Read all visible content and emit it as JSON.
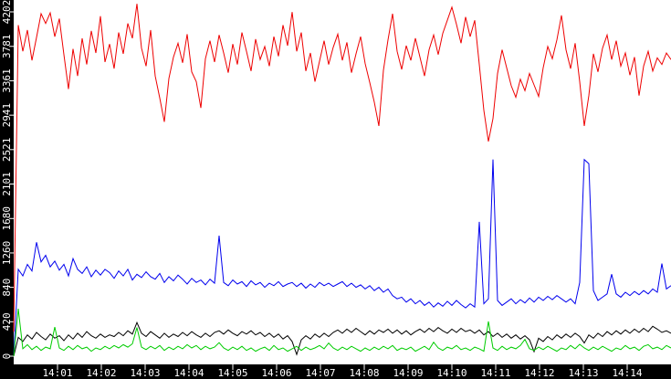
{
  "chart_data": {
    "type": "line",
    "title": "",
    "xlabel": "",
    "ylabel": "",
    "grid": false,
    "legend": "none",
    "background_color": "#ffffff",
    "axis_strip_color": "#000000",
    "axis_text_color": "#ffffff",
    "x_axis": {
      "start_time": "14:00",
      "end_time": "14:15",
      "tick_labels": [
        "14:01",
        "14:02",
        "14:03",
        "14:04",
        "14:05",
        "14:06",
        "14:07",
        "14:08",
        "14:09",
        "14:10",
        "14:11",
        "14:12",
        "14:13",
        "14:14"
      ],
      "tick_minutes": [
        1,
        2,
        3,
        4,
        5,
        6,
        7,
        8,
        9,
        10,
        11,
        12,
        13,
        14
      ],
      "total_minutes": 15
    },
    "y_axis": {
      "tick_labels": [
        "0",
        "420",
        "840",
        "1260",
        "1680",
        "2101",
        "2521",
        "2941",
        "3361",
        "3781",
        "4202"
      ],
      "tick_values": [
        0,
        420,
        840,
        1260,
        1680,
        2101,
        2521,
        2941,
        3361,
        3781,
        4202
      ],
      "min": 0,
      "max": 4202
    },
    "sample_step_minutes": 0.10417,
    "series": [
      {
        "name": "red-series",
        "color": "#ee0000",
        "values": [
          300,
          4040,
          3720,
          3980,
          3610,
          3890,
          4180,
          4060,
          4190,
          3900,
          4120,
          3680,
          3260,
          3750,
          3420,
          3880,
          3560,
          3970,
          3700,
          4150,
          3590,
          3810,
          3510,
          3950,
          3690,
          4060,
          3880,
          4300,
          3760,
          3540,
          3980,
          3420,
          3150,
          2860,
          3390,
          3650,
          3820,
          3580,
          3930,
          3470,
          3350,
          3030,
          3630,
          3850,
          3590,
          3920,
          3700,
          3460,
          3810,
          3560,
          3950,
          3720,
          3480,
          3870,
          3620,
          3780,
          3540,
          3900,
          3660,
          4040,
          3790,
          4200,
          3720,
          3950,
          3480,
          3700,
          3350,
          3600,
          3850,
          3560,
          3770,
          3930,
          3610,
          3830,
          3460,
          3690,
          3900,
          3570,
          3340,
          3100,
          2810,
          3490,
          3860,
          4180,
          3720,
          3500,
          3790,
          3610,
          3880,
          3650,
          3420,
          3740,
          3920,
          3680,
          3940,
          4100,
          4260,
          4050,
          3820,
          4140,
          3900,
          4100,
          3560,
          3000,
          2620,
          2900,
          3450,
          3740,
          3520,
          3300,
          3160,
          3380,
          3240,
          3450,
          3310,
          3170,
          3520,
          3780,
          3630,
          3860,
          4160,
          3740,
          3510,
          3820,
          3350,
          2810,
          3180,
          3690,
          3470,
          3760,
          3920,
          3620,
          3850,
          3540,
          3700,
          3430,
          3650,
          3180,
          3540,
          3720,
          3480,
          3640,
          3560,
          3700,
          3620
        ]
      },
      {
        "name": "blue-series",
        "color": "#0000ee",
        "values": [
          0,
          1060,
          980,
          1120,
          1040,
          1390,
          1150,
          1230,
          1090,
          1160,
          1050,
          1120,
          980,
          1190,
          1060,
          1010,
          1090,
          970,
          1050,
          990,
          1060,
          1020,
          950,
          1040,
          980,
          1060,
          930,
          1000,
          960,
          1030,
          970,
          940,
          1010,
          900,
          970,
          920,
          990,
          940,
          880,
          950,
          900,
          930,
          870,
          940,
          890,
          1470,
          900,
          860,
          930,
          880,
          910,
          850,
          920,
          870,
          900,
          840,
          890,
          860,
          910,
          850,
          880,
          900,
          850,
          890,
          830,
          880,
          840,
          900,
          860,
          890,
          850,
          880,
          910,
          850,
          890,
          840,
          870,
          820,
          860,
          800,
          840,
          780,
          820,
          740,
          700,
          720,
          660,
          700,
          640,
          680,
          620,
          660,
          600,
          650,
          610,
          670,
          620,
          680,
          630,
          590,
          640,
          600,
          1640,
          640,
          700,
          2400,
          680,
          620,
          660,
          700,
          640,
          690,
          650,
          710,
          660,
          720,
          680,
          730,
          690,
          740,
          700,
          660,
          700,
          640,
          900,
          2400,
          2350,
          800,
          680,
          720,
          760,
          1000,
          760,
          720,
          780,
          740,
          790,
          750,
          800,
          760,
          820,
          780,
          1130,
          820,
          860
        ]
      },
      {
        "name": "black-series",
        "color": "#000000",
        "values": [
          0,
          230,
          180,
          260,
          210,
          290,
          240,
          200,
          270,
          220,
          250,
          190,
          260,
          210,
          280,
          230,
          300,
          250,
          220,
          270,
          230,
          260,
          240,
          290,
          250,
          310,
          270,
          410,
          280,
          240,
          300,
          260,
          220,
          280,
          230,
          270,
          240,
          290,
          250,
          300,
          260,
          230,
          280,
          240,
          290,
          310,
          270,
          320,
          280,
          250,
          300,
          270,
          310,
          260,
          290,
          240,
          280,
          230,
          270,
          210,
          250,
          180,
          20,
          200,
          250,
          210,
          270,
          230,
          280,
          240,
          290,
          320,
          280,
          330,
          290,
          340,
          300,
          260,
          310,
          270,
          320,
          290,
          330,
          280,
          320,
          270,
          310,
          260,
          300,
          330,
          290,
          340,
          300,
          350,
          310,
          280,
          330,
          290,
          340,
          300,
          320,
          280,
          320,
          260,
          300,
          240,
          280,
          230,
          270,
          220,
          260,
          210,
          250,
          200,
          56,
          220,
          180,
          240,
          200,
          260,
          220,
          270,
          230,
          280,
          240,
          160,
          260,
          220,
          280,
          240,
          300,
          260,
          310,
          270,
          320,
          280,
          330,
          290,
          340,
          300,
          365,
          330,
          290,
          310,
          280
        ]
      },
      {
        "name": "green-series",
        "color": "#00cc00",
        "values": [
          0,
          580,
          90,
          140,
          80,
          120,
          70,
          110,
          90,
          355,
          100,
          70,
          120,
          80,
          130,
          90,
          110,
          60,
          100,
          80,
          120,
          90,
          130,
          100,
          140,
          110,
          150,
          350,
          110,
          80,
          120,
          90,
          130,
          70,
          110,
          80,
          120,
          90,
          140,
          100,
          130,
          80,
          120,
          90,
          110,
          165,
          100,
          70,
          110,
          80,
          120,
          70,
          100,
          60,
          90,
          110,
          70,
          130,
          80,
          100,
          60,
          90,
          120,
          70,
          110,
          80,
          100,
          130,
          90,
          160,
          100,
          70,
          110,
          80,
          120,
          90,
          60,
          100,
          70,
          110,
          80,
          120,
          90,
          130,
          70,
          100,
          80,
          110,
          60,
          90,
          120,
          80,
          170,
          100,
          70,
          110,
          90,
          130,
          80,
          100,
          70,
          110,
          90,
          60,
          425,
          100,
          70,
          120,
          80,
          110,
          90,
          130,
          205,
          90,
          70,
          110,
          80,
          120,
          90,
          60,
          100,
          80,
          130,
          90,
          145,
          100,
          70,
          110,
          80,
          120,
          90,
          60,
          100,
          80,
          130,
          90,
          110,
          70,
          120,
          140,
          90,
          110,
          80,
          130,
          100
        ]
      }
    ]
  }
}
